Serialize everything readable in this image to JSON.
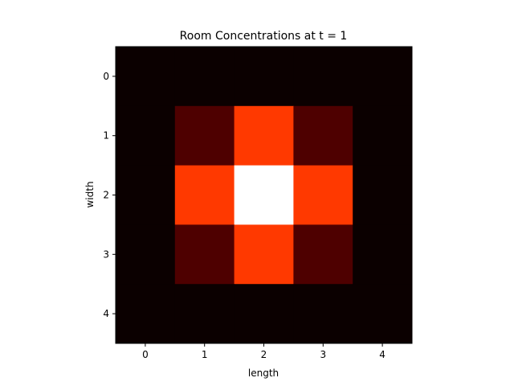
{
  "chart_data": {
    "type": "heatmap",
    "title": "Room Concentrations at t = 1",
    "xlabel": "length",
    "ylabel": "width",
    "x_ticks": [
      "0",
      "1",
      "2",
      "3",
      "4"
    ],
    "y_ticks": [
      "0",
      "1",
      "2",
      "3",
      "4"
    ],
    "xlim": [
      -0.5,
      4.5
    ],
    "ylim": [
      4.5,
      -0.5
    ],
    "grid": false,
    "colormap": "hot",
    "values": [
      [
        0,
        0,
        0,
        0,
        0
      ],
      [
        0,
        0.1,
        0.45,
        0.1,
        0
      ],
      [
        0,
        0.45,
        1.0,
        0.45,
        0
      ],
      [
        0,
        0.1,
        0.45,
        0.1,
        0
      ],
      [
        0,
        0,
        0,
        0,
        0
      ]
    ],
    "colors": {
      "background": "#ffffff",
      "cell_zero": "#0b0000",
      "cell_low": "#330000",
      "cell_mid": "#b30000",
      "cell_max": "#ffffff"
    }
  }
}
